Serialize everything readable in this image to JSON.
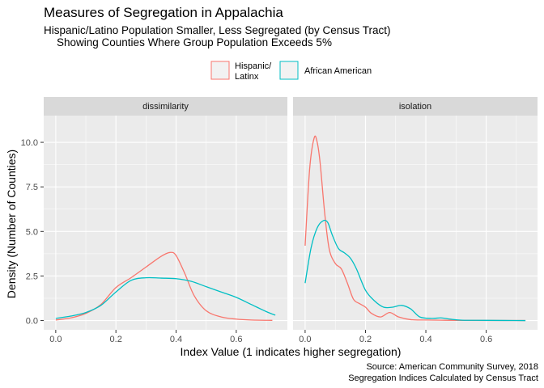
{
  "title": "Measures of Segregation in Appalachia",
  "subtitle_lines": [
    "Hispanic/Latino Population Smaller, Less Segregated (by Census Tract)",
    "Showing Counties Where Group Population Exceeds 5%"
  ],
  "legend": [
    {
      "label_lines": [
        "Hispanic/",
        "Latinx"
      ],
      "color": "#F8766D"
    },
    {
      "label_lines": [
        "African American"
      ],
      "color": "#00BFC4"
    }
  ],
  "caption_lines": [
    "Source: American Community Survey, 2018",
    "Segregation Indices Calculated by Census Tract"
  ],
  "chart_data": {
    "type": "line",
    "xlabel": "Index Value (1 indicates higher segregation)",
    "ylabel": "Density (Number of Counties)",
    "xlim": [
      -0.04,
      0.77
    ],
    "ylim": [
      -0.52,
      11.5
    ],
    "x_ticks": [
      0.0,
      0.2,
      0.4,
      0.6
    ],
    "x_tick_labels": [
      "0.0",
      "0.2",
      "0.4",
      "0.6"
    ],
    "y_ticks": [
      0,
      2.5,
      5,
      7.5,
      10
    ],
    "y_tick_labels": [
      "0.0",
      "2.5",
      "5.0",
      "7.5",
      "10.0"
    ],
    "grid": true,
    "legend_position": "top",
    "panels": [
      {
        "strip": "dissimilarity",
        "series": [
          {
            "name": "Hispanic/Latinx",
            "color": "#F8766D",
            "x": [
              0.0,
              0.05,
              0.1,
              0.15,
              0.2,
              0.25,
              0.3,
              0.35,
              0.38,
              0.4,
              0.43,
              0.46,
              0.5,
              0.55,
              0.6,
              0.65,
              0.72
            ],
            "y": [
              0.03,
              0.15,
              0.4,
              0.9,
              1.85,
              2.4,
              3.0,
              3.6,
              3.82,
              3.65,
              2.6,
              1.4,
              0.55,
              0.2,
              0.08,
              0.03,
              0.01
            ]
          },
          {
            "name": "African American",
            "color": "#00BFC4",
            "x": [
              0.0,
              0.05,
              0.1,
              0.15,
              0.2,
              0.25,
              0.3,
              0.35,
              0.4,
              0.45,
              0.5,
              0.55,
              0.6,
              0.65,
              0.7,
              0.73
            ],
            "y": [
              0.12,
              0.25,
              0.45,
              0.85,
              1.6,
              2.25,
              2.4,
              2.38,
              2.35,
              2.2,
              1.9,
              1.6,
              1.3,
              0.9,
              0.5,
              0.3
            ]
          }
        ]
      },
      {
        "strip": "isolation",
        "series": [
          {
            "name": "Hispanic/Latinx",
            "color": "#F8766D",
            "x": [
              0.0,
              0.015,
              0.03,
              0.04,
              0.05,
              0.065,
              0.08,
              0.1,
              0.12,
              0.14,
              0.16,
              0.18,
              0.2,
              0.22,
              0.25,
              0.28,
              0.31,
              0.35,
              0.4,
              0.45,
              0.5,
              0.6,
              0.73
            ],
            "y": [
              4.2,
              8.5,
              10.25,
              10.0,
              8.8,
              6.0,
              4.0,
              3.2,
              2.9,
              2.1,
              1.2,
              0.95,
              0.75,
              0.4,
              0.2,
              0.45,
              0.2,
              0.05,
              0.03,
              0.02,
              0.01,
              0.005,
              0.0
            ]
          },
          {
            "name": "African American",
            "color": "#00BFC4",
            "x": [
              0.0,
              0.02,
              0.04,
              0.06,
              0.075,
              0.09,
              0.11,
              0.13,
              0.15,
              0.17,
              0.2,
              0.23,
              0.26,
              0.29,
              0.32,
              0.35,
              0.38,
              0.42,
              0.45,
              0.48,
              0.52,
              0.6,
              0.73
            ],
            "y": [
              2.1,
              4.1,
              5.2,
              5.6,
              5.5,
              4.8,
              4.05,
              3.8,
              3.5,
              2.9,
              1.7,
              1.1,
              0.75,
              0.75,
              0.85,
              0.65,
              0.2,
              0.12,
              0.15,
              0.08,
              0.02,
              0.01,
              0.0
            ]
          }
        ]
      }
    ]
  }
}
